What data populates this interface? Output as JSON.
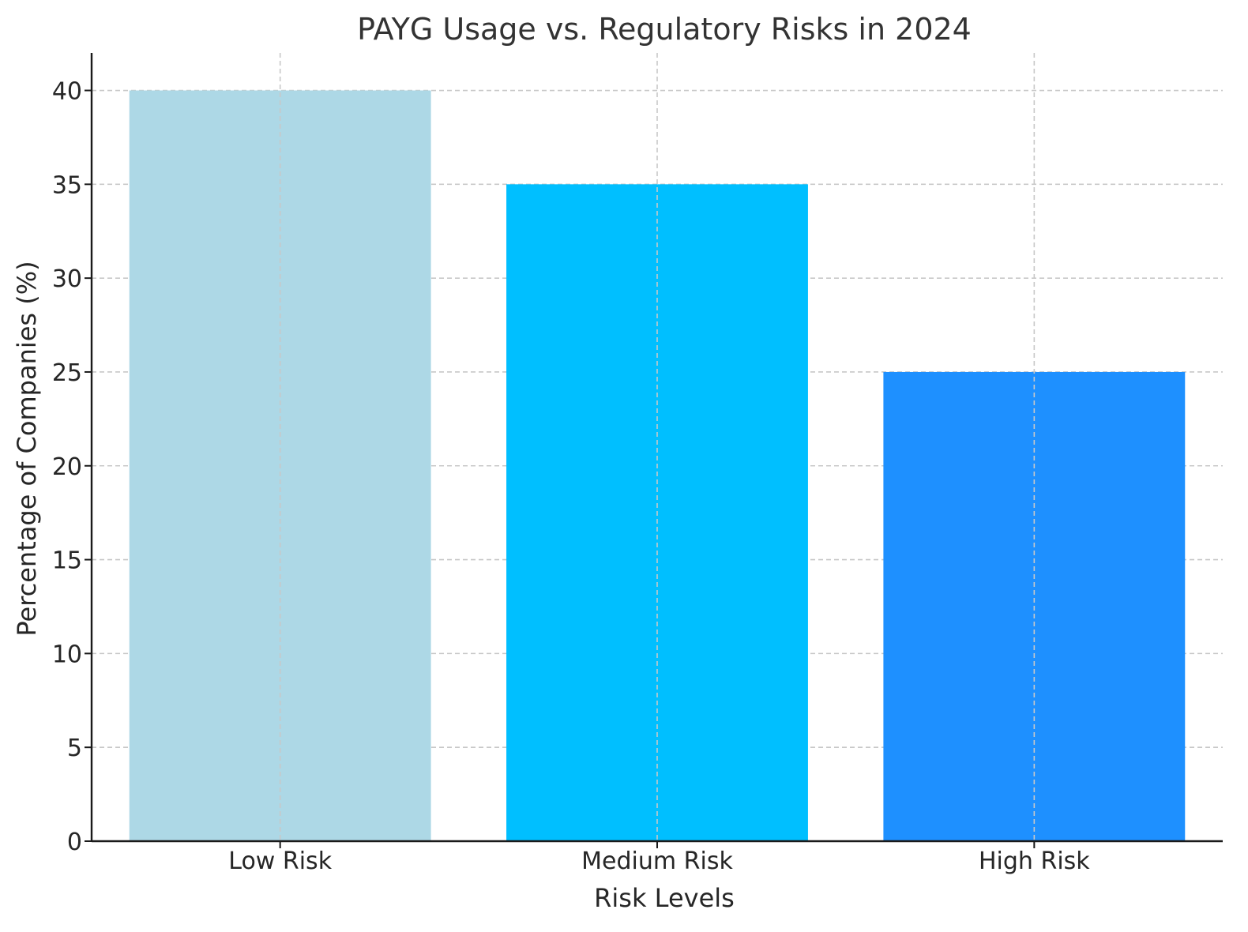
{
  "chart_data": {
    "type": "bar",
    "title": "PAYG Usage vs. Regulatory Risks in 2024",
    "xlabel": "Risk Levels",
    "ylabel": "Percentage of Companies (%)",
    "categories": [
      "Low Risk",
      "Medium Risk",
      "High Risk"
    ],
    "values": [
      40,
      35,
      25
    ],
    "colors": [
      "#add8e6",
      "#00bfff",
      "#1e90ff"
    ],
    "ylim": [
      0,
      42
    ],
    "yticks": [
      0,
      5,
      10,
      15,
      20,
      25,
      30,
      35,
      40
    ],
    "grid": true,
    "legend": "none"
  }
}
